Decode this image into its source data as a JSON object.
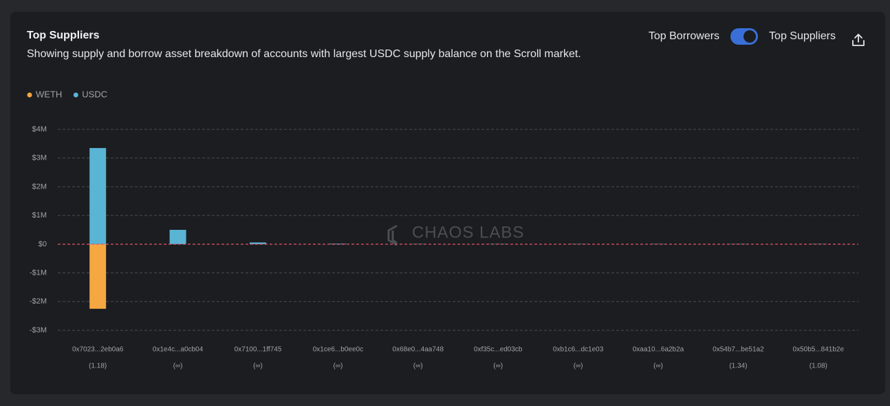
{
  "chart_data": {
    "type": "bar",
    "title": "Top Suppliers",
    "subtitle": "Showing supply and borrow asset breakdown of accounts with largest USDC supply balance on the Scroll market.",
    "toggle": {
      "left_label": "Top Borrowers",
      "right_label": "Top Suppliers",
      "on": true
    },
    "watermark": "CHAOS LABS",
    "stacked": true,
    "grid": true,
    "categories": [
      "0x7023...2eb0a6",
      "0x1e4c...a0cb04",
      "0x7100...1ff745",
      "0x1ce6...b0ee0c",
      "0x68e0...4aa748",
      "0xf35c...ed03cb",
      "0xb1c6...dc1e03",
      "0xaa10...6a2b2a",
      "0x54b7...be51a2",
      "0x50b5...841b2e"
    ],
    "category_notes": [
      "(1.18)",
      "(∞)",
      "(∞)",
      "(∞)",
      "(∞)",
      "(∞)",
      "(∞)",
      "(∞)",
      "(1.34)",
      "(1.08)"
    ],
    "series": [
      {
        "name": "WETH",
        "color": "#f5a742",
        "values": [
          -2250000,
          0,
          0,
          0,
          0,
          0,
          0,
          0,
          0,
          0
        ]
      },
      {
        "name": "USDC",
        "color": "#5ab4d4",
        "values": [
          3350000,
          500000,
          60000,
          20000,
          10000,
          10000,
          10000,
          10000,
          10000,
          10000
        ]
      }
    ],
    "ylim": [
      -3000000,
      4000000
    ],
    "yticks": [
      {
        "value": -3000000,
        "label": "-$3M"
      },
      {
        "value": -2000000,
        "label": "-$2M"
      },
      {
        "value": -1000000,
        "label": "-$1M"
      },
      {
        "value": 0,
        "label": "$0"
      },
      {
        "value": 1000000,
        "label": "$1M"
      },
      {
        "value": 2000000,
        "label": "$2M"
      },
      {
        "value": 3000000,
        "label": "$3M"
      },
      {
        "value": 4000000,
        "label": "$4M"
      }
    ]
  }
}
